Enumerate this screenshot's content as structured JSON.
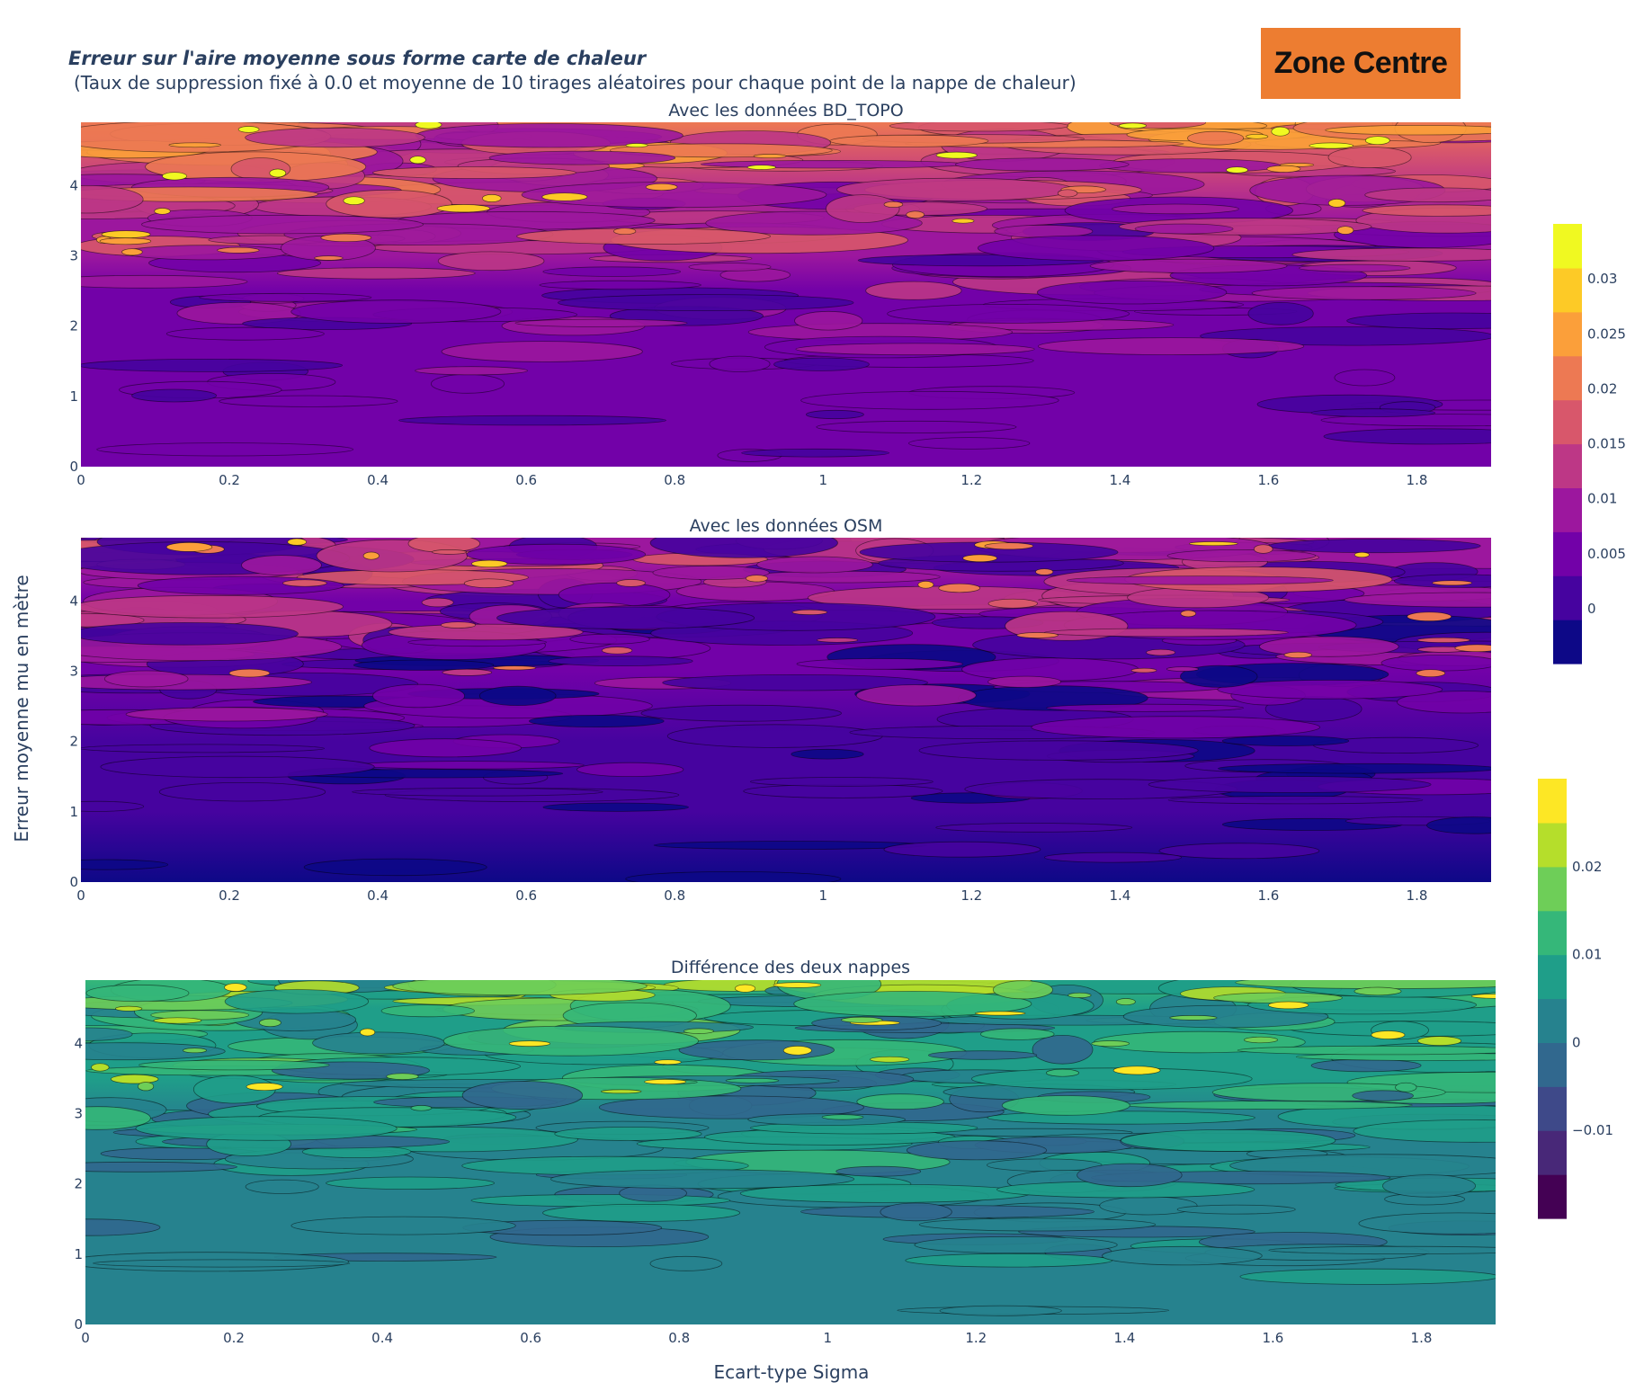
{
  "figure": {
    "title": "Erreur sur l'aire moyenne sous forme carte de chaleur",
    "subtitle": "(Taux de suppression fixé à 0.0 et moyenne de 10 tirages aléatoires pour chaque point de la nappe de chaleur)",
    "badge": "Zone Centre",
    "xlabel": "Ecart-type Sigma",
    "ylabel": "Erreur moyenne mu en mètre"
  },
  "chart_data": [
    {
      "type": "heatmap",
      "title": "Avec les données BD_TOPO",
      "colorscale": "plasma",
      "x_ticks": [
        "0",
        "0.2",
        "0.4",
        "0.6",
        "0.8",
        "1",
        "1.2",
        "1.4",
        "1.6",
        "1.8"
      ],
      "y_ticks": [
        "0",
        "1",
        "2",
        "3",
        "4"
      ],
      "xlim": [
        0,
        1.9
      ],
      "ylim": [
        0,
        4.9
      ],
      "zlim": [
        -0.005,
        0.035
      ],
      "row_means_by_mu": [
        {
          "mu": 0.0,
          "z": 0.003
        },
        {
          "mu": 1.0,
          "z": 0.003
        },
        {
          "mu": 2.0,
          "z": 0.004
        },
        {
          "mu": 2.5,
          "z": 0.006
        },
        {
          "mu": 3.0,
          "z": 0.008
        },
        {
          "mu": 3.5,
          "z": 0.01
        },
        {
          "mu": 4.0,
          "z": 0.013
        },
        {
          "mu": 4.5,
          "z": 0.016
        },
        {
          "mu": 4.9,
          "z": 0.019
        }
      ],
      "colorbar_ticks": [
        "0",
        "0.005",
        "0.01",
        "0.015",
        "0.02",
        "0.025",
        "0.03"
      ]
    },
    {
      "type": "heatmap",
      "title": "Avec les données OSM",
      "colorscale": "plasma",
      "x_ticks": [
        "0",
        "0.2",
        "0.4",
        "0.6",
        "0.8",
        "1",
        "1.2",
        "1.4",
        "1.6",
        "1.8"
      ],
      "y_ticks": [
        "0",
        "1",
        "2",
        "3",
        "4"
      ],
      "xlim": [
        0,
        1.9
      ],
      "ylim": [
        0,
        4.9
      ],
      "zlim": [
        -0.005,
        0.035
      ],
      "row_means_by_mu": [
        {
          "mu": 0.0,
          "z": -0.002
        },
        {
          "mu": 1.0,
          "z": -0.001
        },
        {
          "mu": 2.0,
          "z": 0.0
        },
        {
          "mu": 3.0,
          "z": 0.003
        },
        {
          "mu": 3.5,
          "z": 0.005
        },
        {
          "mu": 4.0,
          "z": 0.006
        },
        {
          "mu": 4.5,
          "z": 0.008
        },
        {
          "mu": 4.9,
          "z": 0.009
        }
      ]
    },
    {
      "type": "heatmap",
      "title": "Différence des deux nappes",
      "colorscale": "viridis",
      "x_ticks": [
        "0",
        "0.2",
        "0.4",
        "0.6",
        "0.8",
        "1",
        "1.2",
        "1.4",
        "1.6",
        "1.8"
      ],
      "y_ticks": [
        "0",
        "1",
        "2",
        "3",
        "4"
      ],
      "xlim": [
        0,
        1.9
      ],
      "ylim": [
        0,
        4.9
      ],
      "zlim": [
        -0.02,
        0.03
      ],
      "row_means_by_mu": [
        {
          "mu": 0.0,
          "z": 0.002
        },
        {
          "mu": 1.0,
          "z": 0.002
        },
        {
          "mu": 2.0,
          "z": 0.003
        },
        {
          "mu": 3.0,
          "z": 0.004
        },
        {
          "mu": 3.5,
          "z": 0.005
        },
        {
          "mu": 4.0,
          "z": 0.007
        },
        {
          "mu": 4.5,
          "z": 0.009
        },
        {
          "mu": 4.9,
          "z": 0.011
        }
      ],
      "colorbar_ticks": [
        "−0.01",
        "0",
        "0.01",
        "0.02"
      ]
    }
  ]
}
